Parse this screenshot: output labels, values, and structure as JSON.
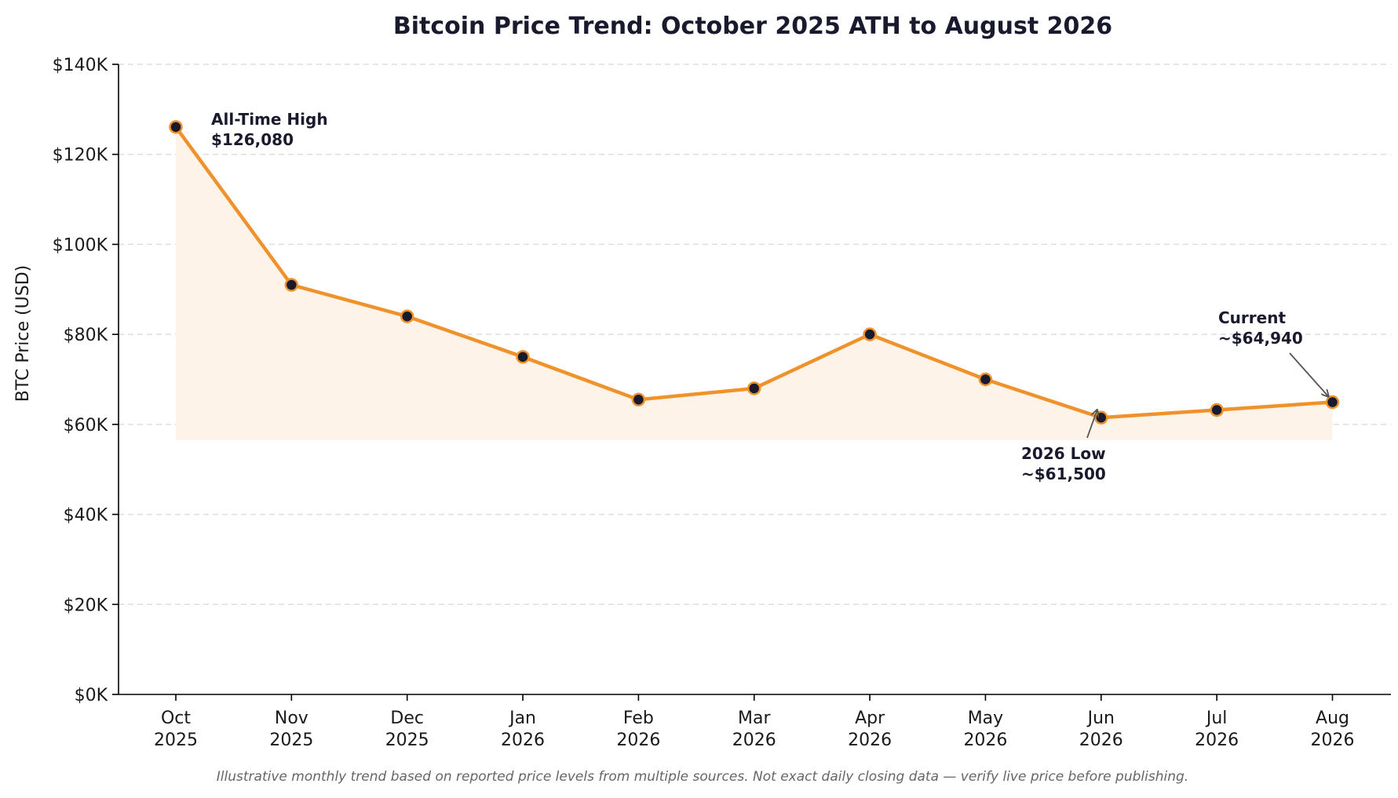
{
  "chart_data": {
    "type": "line",
    "title": "Bitcoin Price Trend: October 2025 ATH to August 2026",
    "xlabel": "",
    "ylabel": "BTC Price (USD)",
    "categories": [
      [
        "Oct",
        "2025"
      ],
      [
        "Nov",
        "2025"
      ],
      [
        "Dec",
        "2025"
      ],
      [
        "Jan",
        "2026"
      ],
      [
        "Feb",
        "2026"
      ],
      [
        "Mar",
        "2026"
      ],
      [
        "Apr",
        "2026"
      ],
      [
        "May",
        "2026"
      ],
      [
        "Jun",
        "2026"
      ],
      [
        "Jul",
        "2026"
      ],
      [
        "Aug",
        "2026"
      ]
    ],
    "series": [
      {
        "values": [
          126080,
          91000,
          84000,
          75000,
          65500,
          68000,
          80000,
          70000,
          61500,
          63200,
          64940
        ]
      }
    ],
    "ylim": [
      0,
      140000
    ],
    "yticks": [
      0,
      20000,
      40000,
      60000,
      80000,
      100000,
      120000,
      140000
    ],
    "ytick_labels": [
      "$0K",
      "$20K",
      "$40K",
      "$60K",
      "$80K",
      "$100K",
      "$120K",
      "$140K"
    ],
    "grid": "horizontal dashed",
    "fill_baseline": 56500,
    "colors": {
      "line": "#f0922b",
      "fill": "#fdf3e8",
      "marker_face": "#1a1a2e",
      "marker_edge": "#f0922b",
      "grid": "#dddddd",
      "axis": "#000000",
      "arrow": "#555555"
    },
    "annotations": [
      {
        "index": 0,
        "lines": [
          "All-Time High",
          "$126,080"
        ],
        "arrow": false
      },
      {
        "index": 8,
        "lines": [
          "2026 Low",
          "~$61,500"
        ],
        "arrow": true
      },
      {
        "index": 10,
        "lines": [
          "Current",
          "~$64,940"
        ],
        "arrow": true
      }
    ]
  },
  "footnote": "Illustrative monthly trend based on reported price levels from multiple sources. Not exact daily closing data — verify live price before publishing."
}
